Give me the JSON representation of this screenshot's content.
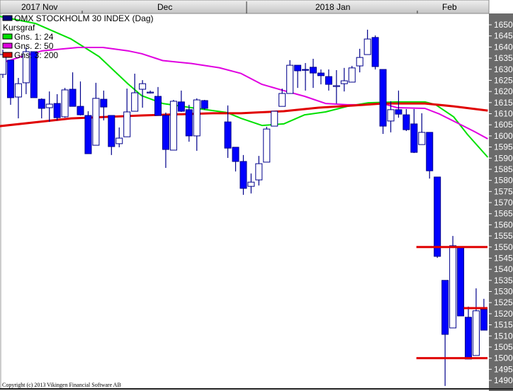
{
  "chart_data": {
    "type": "candlestick",
    "title": "OMX STOCKHOLM 30 INDEX (Dag)",
    "legend": {
      "placement": "top-left",
      "heading": "Kursgraf",
      "entries": [
        {
          "label": "OMX STOCKHOLM 30 INDEX (Dag)",
          "color": "#000080"
        },
        {
          "label": "Gns. 1: 24",
          "color": "#00e000"
        },
        {
          "label": "Gns. 2: 50",
          "color": "#e000e0"
        },
        {
          "label": "Gns. 3: 200",
          "color": "#e00000"
        }
      ]
    },
    "x_tick_labels": [
      "2017 Nov",
      "Dec",
      "2018 Jan",
      "Feb"
    ],
    "y_ticks": [
      1650,
      1645,
      1640,
      1635,
      1630,
      1625,
      1620,
      1615,
      1610,
      1605,
      1600,
      1595,
      1590,
      1585,
      1580,
      1575,
      1570,
      1565,
      1560,
      1555,
      1550,
      1545,
      1540,
      1535,
      1530,
      1525,
      1520,
      1515,
      1510,
      1505,
      1500,
      1495,
      1490
    ],
    "ylim": [
      1490,
      1650
    ],
    "y_axis_side": "right",
    "grid": false,
    "candles_ohlc": [
      [
        1627.7,
        1638.8,
        1626.1,
        1636.6
      ],
      [
        1634.1,
        1634.1,
        1614.0,
        1617.2
      ],
      [
        1617.5,
        1626.1,
        1607.9,
        1623.5
      ],
      [
        1623.9,
        1639.8,
        1618.8,
        1637.9
      ],
      [
        1637.9,
        1637.9,
        1617.2,
        1617.2
      ],
      [
        1616.5,
        1616.9,
        1607.9,
        1612.4
      ],
      [
        1612.7,
        1620.0,
        1606.3,
        1614.3
      ],
      [
        1614.6,
        1618.8,
        1607.0,
        1608.2
      ],
      [
        1608.6,
        1621.6,
        1608.2,
        1620.7
      ],
      [
        1621.0,
        1628.6,
        1613.3,
        1613.3
      ],
      [
        1613.3,
        1624.5,
        1609.2,
        1609.5
      ],
      [
        1609.2,
        1611.1,
        1592.0,
        1592.0
      ],
      [
        1595.8,
        1623.9,
        1595.8,
        1616.9
      ],
      [
        1616.5,
        1620.4,
        1607.0,
        1613.0
      ],
      [
        1609.2,
        1609.2,
        1591.4,
        1595.2
      ],
      [
        1596.5,
        1603.8,
        1594.9,
        1599.0
      ],
      [
        1599.6,
        1621.3,
        1599.6,
        1610.8
      ],
      [
        1611.1,
        1628.0,
        1611.1,
        1619.4
      ],
      [
        1621.0,
        1625.1,
        1612.7,
        1623.5
      ],
      [
        1619.7,
        1620.4,
        1619.1,
        1619.7
      ],
      [
        1617.8,
        1622.0,
        1609.2,
        1609.2
      ],
      [
        1609.2,
        1610.5,
        1585.6,
        1593.9
      ],
      [
        1593.6,
        1616.2,
        1593.6,
        1615.6
      ],
      [
        1615.3,
        1620.4,
        1610.8,
        1611.1
      ],
      [
        1611.8,
        1614.0,
        1597.4,
        1600.0
      ],
      [
        1600.0,
        1616.9,
        1593.3,
        1616.2
      ],
      [
        1615.9,
        1616.2,
        1611.8,
        1612.4
      ],
      null,
      null,
      [
        1606.3,
        1613.7,
        1590.1,
        1594.5
      ],
      [
        1594.9,
        1594.9,
        1584.0,
        1588.5
      ],
      [
        1588.5,
        1591.4,
        1573.5,
        1576.4
      ],
      [
        1577.3,
        1583.1,
        1574.1,
        1579.2
      ],
      [
        1580.2,
        1591.0,
        1577.7,
        1587.5
      ],
      [
        1588.2,
        1604.1,
        1588.2,
        1603.1
      ],
      [
        1604.4,
        1611.1,
        1604.4,
        1611.1
      ],
      [
        1613.3,
        1621.3,
        1613.3,
        1619.1
      ],
      [
        1619.1,
        1634.1,
        1619.1,
        1631.8
      ],
      [
        1631.8,
        1631.8,
        1621.6,
        1629.3
      ],
      [
        1629.9,
        1632.8,
        1620.4,
        1629.6
      ],
      [
        1630.9,
        1634.7,
        1621.6,
        1628.3
      ],
      [
        1628.3,
        1629.9,
        1623.2,
        1627.1
      ],
      [
        1626.7,
        1629.9,
        1620.4,
        1623.2
      ],
      [
        1622.6,
        1629.6,
        1614.6,
        1622.6
      ],
      [
        1623.5,
        1630.6,
        1620.0,
        1624.8
      ],
      [
        1624.2,
        1631.5,
        1624.2,
        1630.6
      ],
      [
        1631.5,
        1639.2,
        1628.6,
        1635.3
      ],
      [
        1636.6,
        1647.8,
        1636.6,
        1643.6
      ],
      [
        1644.3,
        1645.2,
        1629.9,
        1631.2
      ],
      [
        1629.9,
        1629.9,
        1600.9,
        1604.4
      ],
      [
        1606.7,
        1615.6,
        1601.6,
        1611.8
      ],
      [
        1611.8,
        1620.4,
        1608.2,
        1609.8
      ],
      [
        1609.5,
        1612.1,
        1602.2,
        1602.8
      ],
      [
        1605.4,
        1612.1,
        1592.3,
        1592.6
      ],
      [
        1596.1,
        1610.2,
        1596.1,
        1601.6
      ],
      [
        1601.6,
        1601.6,
        1580.8,
        1584.3
      ],
      [
        1581.5,
        1581.5,
        1545.1,
        1545.8
      ],
      [
        1535.0,
        1535.0,
        1487.5,
        1510.7
      ],
      [
        1513.6,
        1555.0,
        1513.6,
        1550.6
      ],
      [
        1550.2,
        1550.2,
        1519.0,
        1519.0
      ],
      [
        1518.4,
        1523.2,
        1499.6,
        1499.6
      ],
      [
        1501.2,
        1531.4,
        1501.2,
        1521.3
      ],
      [
        1521.9,
        1526.7,
        1512.6,
        1512.6
      ]
    ],
    "moving_averages": [
      {
        "name": "Gns. 1: 24",
        "color": "#00e000",
        "points": [
          [
            -0.4,
            1653.8
          ],
          [
            4.2,
            1650.6
          ],
          [
            8.8,
            1643.6
          ],
          [
            12.4,
            1635.7
          ],
          [
            16.1,
            1623.5
          ],
          [
            17.9,
            1618.1
          ],
          [
            20.6,
            1614.6
          ],
          [
            24.3,
            1612.7
          ],
          [
            28.9,
            1610.5
          ],
          [
            30.7,
            1607.9
          ],
          [
            33.4,
            1604.7
          ],
          [
            36.2,
            1605.4
          ],
          [
            38.9,
            1609.5
          ],
          [
            41.6,
            1610.8
          ],
          [
            44.4,
            1613.3
          ],
          [
            47.1,
            1614.9
          ],
          [
            50.8,
            1615.3
          ],
          [
            54.4,
            1615.3
          ],
          [
            55.8,
            1614.0
          ],
          [
            58.1,
            1608.6
          ],
          [
            59.9,
            1600.6
          ],
          [
            62.5,
            1590.4
          ]
        ]
      },
      {
        "name": "Gns. 2: 50",
        "color": "#e000e0",
        "points": [
          [
            -0.4,
            1632.6
          ],
          [
            2.4,
            1635.7
          ],
          [
            5.1,
            1638.3
          ],
          [
            9.7,
            1639.8
          ],
          [
            12.9,
            1639.8
          ],
          [
            16.1,
            1638.3
          ],
          [
            17.9,
            1637.0
          ],
          [
            20.6,
            1633.9
          ],
          [
            24.3,
            1632.6
          ],
          [
            27.9,
            1630.7
          ],
          [
            30.7,
            1628.1
          ],
          [
            33.4,
            1623.2
          ],
          [
            36.2,
            1620.4
          ],
          [
            38.9,
            1617.8
          ],
          [
            41.6,
            1614.6
          ],
          [
            44.4,
            1614.0
          ],
          [
            47.1,
            1614.0
          ],
          [
            48.9,
            1614.6
          ],
          [
            50.8,
            1612.7
          ],
          [
            54.4,
            1612.4
          ],
          [
            56.3,
            1609.8
          ],
          [
            59.0,
            1605.1
          ],
          [
            60.8,
            1601.9
          ],
          [
            62.5,
            1598.7
          ]
        ]
      },
      {
        "name": "Gns. 3: 200",
        "color": "#e00000",
        "points": [
          [
            -0.4,
            1604.4
          ],
          [
            8.8,
            1607.9
          ],
          [
            17.9,
            1609.2
          ],
          [
            27.0,
            1610.2
          ],
          [
            30.7,
            1610.2
          ],
          [
            32.5,
            1610.5
          ],
          [
            36.2,
            1611.1
          ],
          [
            40.7,
            1612.7
          ],
          [
            45.3,
            1613.7
          ],
          [
            48.9,
            1614.6
          ],
          [
            50.8,
            1614.6
          ],
          [
            54.4,
            1614.6
          ],
          [
            58.1,
            1613.3
          ],
          [
            62.5,
            1611.4
          ]
        ]
      }
    ],
    "horizontal_lines": [
      {
        "value": 1550,
        "color": "#e00000",
        "from_index": 53.3
      },
      {
        "value": 1500,
        "color": "#e00000",
        "from_index": 53.3
      },
      {
        "value": 1522.5,
        "color": "#e00000",
        "from_index": 59.4
      }
    ],
    "colors": {
      "bear_body": "#0000ff",
      "outline": "#00008b",
      "bull_body": "#ffffff",
      "axis_bg": "#6b6b6b",
      "header_bg": "#d4d4d4"
    }
  },
  "footer": {
    "copyright": "Copyright (c) 2013 Vikingen Financial Software AB"
  }
}
